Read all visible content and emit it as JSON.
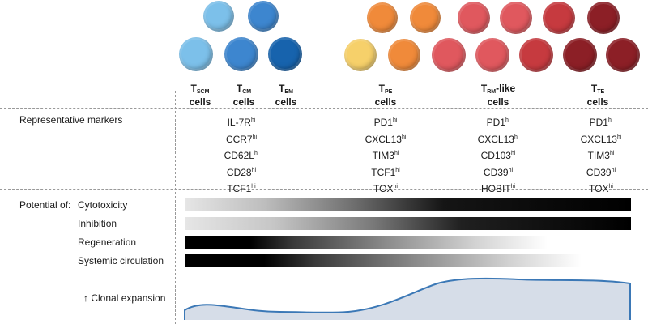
{
  "cell_types": [
    {
      "name": "T",
      "sub": "SCM",
      "suffix": "",
      "line2": "cells"
    },
    {
      "name": "T",
      "sub": "CM",
      "suffix": "",
      "line2": "cells"
    },
    {
      "name": "T",
      "sub": "EM",
      "suffix": "",
      "line2": "cells"
    },
    {
      "name": "T",
      "sub": "PE",
      "suffix": "",
      "line2": "cells"
    },
    {
      "name": "T",
      "sub": "RM",
      "suffix": "-like",
      "line2": "cells"
    },
    {
      "name": "T",
      "sub": "TE",
      "suffix": "",
      "line2": "cells"
    }
  ],
  "row_labels": {
    "markers": "Representative markers",
    "potential_of": "Potential of:",
    "clonal_arrow": "↑",
    "clonal": "Clonal expansion"
  },
  "hi": "hi",
  "marker_groups": [
    [
      "IL-7R",
      "CCR7",
      "CD62L",
      "CD28",
      "TCF1"
    ],
    [
      "PD1",
      "CXCL13",
      "TIM3",
      "TCF1",
      "TOX"
    ],
    [
      "PD1",
      "CXCL13",
      "CD103",
      "CD39",
      "HOBIT"
    ],
    [
      "PD1",
      "CXCL13",
      "TIM3",
      "CD39",
      "TOX"
    ]
  ],
  "potentials": [
    {
      "label": "Cytotoxicity",
      "gradient": "increasing",
      "extent": "full"
    },
    {
      "label": "Inhibition",
      "gradient": "increasing",
      "extent": "full"
    },
    {
      "label": "Regeneration",
      "gradient": "decreasing",
      "extent": "partial"
    },
    {
      "label": "Systemic circulation",
      "gradient": "decreasing",
      "extent": "partial"
    }
  ],
  "colors": {
    "blue_light": "#7cc0ea",
    "blue_mid": "#3d86cf",
    "blue_dark": "#1763ad",
    "yellow": "#f6d06a",
    "orange": "#f08a3a",
    "red_light": "#e0585e",
    "red_mid": "#c63a3f",
    "red_dark": "#8c1f26",
    "curve_fill": "#d6dde8",
    "curve_stroke": "#3b78b6"
  }
}
